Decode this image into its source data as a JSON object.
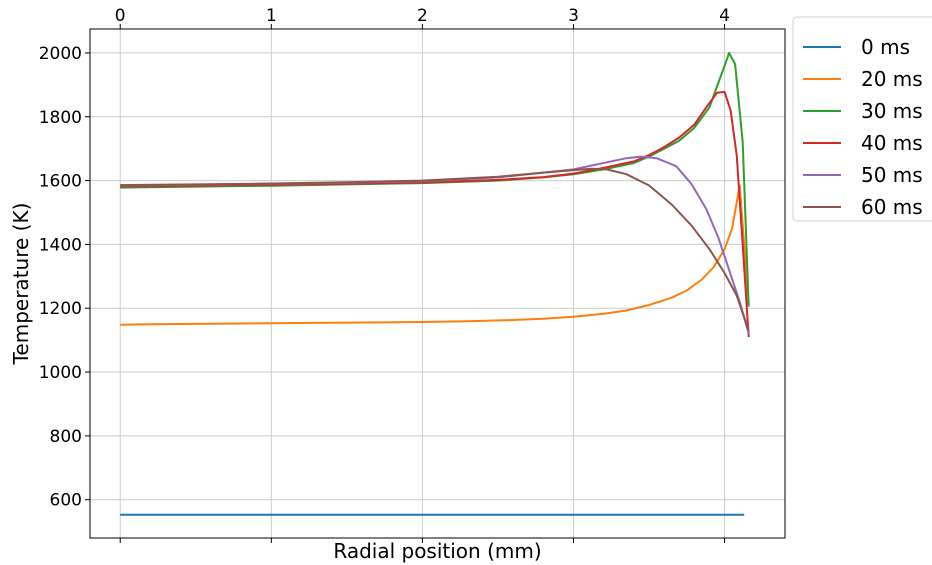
{
  "chart_data": {
    "type": "line",
    "xlabel": "Radial position (mm)",
    "ylabel": "Temperature (K)",
    "xlim": [
      -0.2,
      4.4
    ],
    "ylim": [
      480,
      2075
    ],
    "x_ticks": [
      "0",
      "1",
      "2",
      "3",
      "4"
    ],
    "y_ticks": [
      "600",
      "800",
      "1000",
      "1200",
      "1400",
      "1600",
      "1800",
      "2000"
    ],
    "x_tick_values": [
      0,
      1,
      2,
      3,
      4
    ],
    "y_tick_values": [
      600,
      800,
      1000,
      1200,
      1400,
      1600,
      1800,
      2000
    ],
    "grid": true,
    "legend_position": "outside-top-right",
    "series": [
      {
        "name": "0 ms",
        "color": "#1f77b4",
        "points": [
          [
            0,
            553
          ],
          [
            1,
            553
          ],
          [
            2,
            553
          ],
          [
            3,
            553
          ],
          [
            4,
            553
          ],
          [
            4.13,
            553
          ]
        ]
      },
      {
        "name": "20 ms",
        "color": "#ff7f0e",
        "points": [
          [
            0,
            1148
          ],
          [
            0.2,
            1150
          ],
          [
            0.5,
            1151
          ],
          [
            1.0,
            1153
          ],
          [
            1.5,
            1155
          ],
          [
            2.0,
            1157
          ],
          [
            2.3,
            1159
          ],
          [
            2.6,
            1163
          ],
          [
            2.8,
            1167
          ],
          [
            3.0,
            1173
          ],
          [
            3.2,
            1183
          ],
          [
            3.35,
            1193
          ],
          [
            3.5,
            1210
          ],
          [
            3.65,
            1233
          ],
          [
            3.75,
            1256
          ],
          [
            3.85,
            1290
          ],
          [
            3.93,
            1330
          ],
          [
            4.0,
            1385
          ],
          [
            4.05,
            1450
          ],
          [
            4.1,
            1585
          ],
          [
            4.13,
            1400
          ],
          [
            4.16,
            1210
          ]
        ]
      },
      {
        "name": "30 ms",
        "color": "#2ca02c",
        "points": [
          [
            0,
            1578
          ],
          [
            0.5,
            1581
          ],
          [
            1.0,
            1584
          ],
          [
            1.5,
            1588
          ],
          [
            2.0,
            1592
          ],
          [
            2.5,
            1600
          ],
          [
            2.8,
            1610
          ],
          [
            3.0,
            1620
          ],
          [
            3.2,
            1635
          ],
          [
            3.4,
            1655
          ],
          [
            3.5,
            1675
          ],
          [
            3.6,
            1700
          ],
          [
            3.7,
            1725
          ],
          [
            3.8,
            1765
          ],
          [
            3.9,
            1830
          ],
          [
            3.95,
            1895
          ],
          [
            4.0,
            1960
          ],
          [
            4.03,
            2000
          ],
          [
            4.07,
            1965
          ],
          [
            4.12,
            1720
          ],
          [
            4.16,
            1205
          ]
        ]
      },
      {
        "name": "40 ms",
        "color": "#d62728",
        "points": [
          [
            0,
            1582
          ],
          [
            0.5,
            1584
          ],
          [
            1.0,
            1587
          ],
          [
            1.5,
            1590
          ],
          [
            2.0,
            1594
          ],
          [
            2.5,
            1602
          ],
          [
            2.8,
            1611
          ],
          [
            3.0,
            1622
          ],
          [
            3.2,
            1640
          ],
          [
            3.4,
            1660
          ],
          [
            3.5,
            1680
          ],
          [
            3.6,
            1705
          ],
          [
            3.7,
            1735
          ],
          [
            3.8,
            1775
          ],
          [
            3.88,
            1830
          ],
          [
            3.95,
            1875
          ],
          [
            4.0,
            1878
          ],
          [
            4.04,
            1820
          ],
          [
            4.08,
            1680
          ],
          [
            4.12,
            1400
          ],
          [
            4.16,
            1110
          ]
        ]
      },
      {
        "name": "50 ms",
        "color": "#9467bd",
        "points": [
          [
            0,
            1585
          ],
          [
            0.5,
            1587
          ],
          [
            1.0,
            1590
          ],
          [
            1.5,
            1593
          ],
          [
            2.0,
            1598
          ],
          [
            2.5,
            1610
          ],
          [
            2.8,
            1625
          ],
          [
            3.0,
            1635
          ],
          [
            3.2,
            1655
          ],
          [
            3.35,
            1670
          ],
          [
            3.45,
            1675
          ],
          [
            3.55,
            1670
          ],
          [
            3.68,
            1645
          ],
          [
            3.78,
            1590
          ],
          [
            3.88,
            1510
          ],
          [
            3.96,
            1420
          ],
          [
            4.03,
            1320
          ],
          [
            4.1,
            1220
          ],
          [
            4.16,
            1120
          ]
        ]
      },
      {
        "name": "60 ms",
        "color": "#8c564b",
        "points": [
          [
            0,
            1586
          ],
          [
            0.5,
            1588
          ],
          [
            1.0,
            1591
          ],
          [
            1.5,
            1595
          ],
          [
            2.0,
            1600
          ],
          [
            2.5,
            1612
          ],
          [
            2.8,
            1625
          ],
          [
            3.0,
            1633
          ],
          [
            3.12,
            1637
          ],
          [
            3.22,
            1635
          ],
          [
            3.35,
            1620
          ],
          [
            3.5,
            1585
          ],
          [
            3.65,
            1525
          ],
          [
            3.78,
            1460
          ],
          [
            3.9,
            1385
          ],
          [
            4.0,
            1310
          ],
          [
            4.08,
            1240
          ],
          [
            4.16,
            1130
          ]
        ]
      }
    ]
  }
}
